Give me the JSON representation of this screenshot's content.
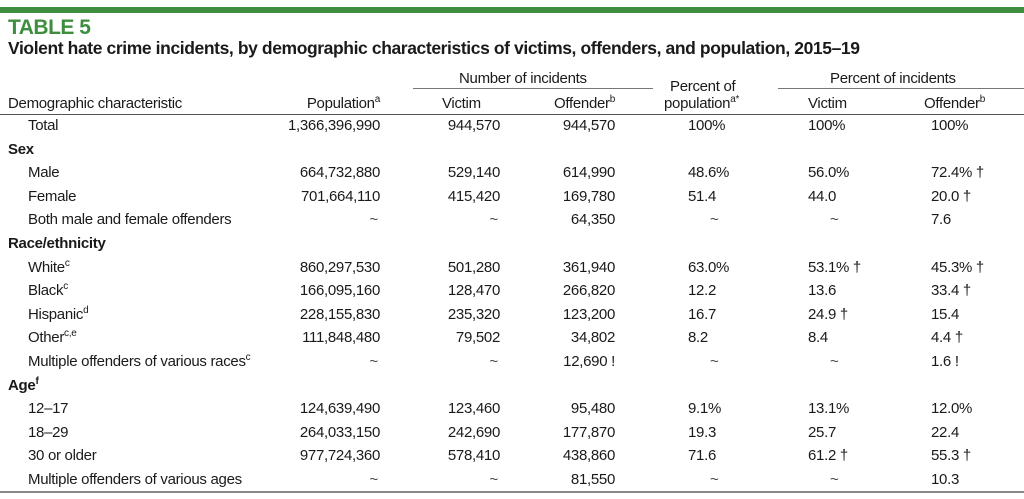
{
  "table_label": "TABLE 5",
  "title": "Violent hate crime incidents, by demographic characteristics of victims, offenders, and population, 2015–19",
  "accent_color": "#3f8e3f",
  "headers": {
    "characteristic": "Demographic characteristic",
    "population": "Population",
    "population_sup": "a",
    "number_group": "Number of incidents",
    "victim": "Victim",
    "offender": "Offender",
    "offender_sup": "b",
    "percent_pop_line1": "Percent of",
    "percent_pop_line2": "population",
    "percent_pop_sup": "a*",
    "percent_group": "Percent of incidents",
    "pct_victim": "Victim",
    "pct_offender": "Offender",
    "pct_offender_sup": "b"
  },
  "rows": [
    {
      "type": "total",
      "label": "Total",
      "sup": "",
      "population": "1,366,396,990",
      "victim": "944,570",
      "offender": "944,570",
      "pct_population": "100%",
      "pct_victim": "100%",
      "pct_offender": "100%"
    },
    {
      "type": "section",
      "label": "Sex",
      "sup": ""
    },
    {
      "type": "data",
      "label": "Male",
      "sup": "",
      "population": "664,732,880",
      "victim": "529,140",
      "offender": "614,990",
      "pct_population": "48.6%",
      "pct_victim": "56.0%",
      "pct_offender": "72.4% †"
    },
    {
      "type": "data",
      "label": "Female",
      "sup": "",
      "population": "701,664,110",
      "victim": "415,420",
      "offender": "169,780",
      "pct_population": "51.4",
      "pct_victim": "44.0",
      "pct_offender": "20.0 †"
    },
    {
      "type": "data",
      "label": "Both male and female offenders",
      "sup": "",
      "population": "~",
      "victim": "~",
      "offender": "64,350",
      "pct_population": "~",
      "pct_victim": "~",
      "pct_offender": "7.6"
    },
    {
      "type": "section",
      "label": "Race/ethnicity",
      "sup": ""
    },
    {
      "type": "data",
      "label": "White",
      "sup": "c",
      "population": "860,297,530",
      "victim": "501,280",
      "offender": "361,940",
      "pct_population": "63.0%",
      "pct_victim": "53.1% †",
      "pct_offender": "45.3% †"
    },
    {
      "type": "data",
      "label": "Black",
      "sup": "c",
      "population": "166,095,160",
      "victim": "128,470",
      "offender": "266,820",
      "pct_population": "12.2",
      "pct_victim": "13.6",
      "pct_offender": "33.4 †"
    },
    {
      "type": "data",
      "label": "Hispanic",
      "sup": "d",
      "population": "228,155,830",
      "victim": "235,320",
      "offender": "123,200",
      "pct_population": "16.7",
      "pct_victim": "24.9 †",
      "pct_offender": "15.4"
    },
    {
      "type": "data",
      "label": "Other",
      "sup": "c,e",
      "population": "111,848,480",
      "victim": "79,502",
      "offender": "34,802",
      "pct_population": "8.2",
      "pct_victim": "8.4",
      "pct_offender": "4.4 †"
    },
    {
      "type": "data",
      "label": "Multiple offenders of various races",
      "sup": "c",
      "population": "~",
      "victim": "~",
      "offender": "12,690 !",
      "pct_population": "~",
      "pct_victim": "~",
      "pct_offender": "1.6 !"
    },
    {
      "type": "section",
      "label": "Age",
      "sup": "f"
    },
    {
      "type": "data",
      "label": "12–17",
      "sup": "",
      "population": "124,639,490",
      "victim": "123,460",
      "offender": "95,480",
      "pct_population": "9.1%",
      "pct_victim": "13.1%",
      "pct_offender": "12.0%"
    },
    {
      "type": "data",
      "label": "18–29",
      "sup": "",
      "population": "264,033,150",
      "victim": "242,690",
      "offender": "177,870",
      "pct_population": "19.3",
      "pct_victim": "25.7",
      "pct_offender": "22.4"
    },
    {
      "type": "data",
      "label": "30 or older",
      "sup": "",
      "population": "977,724,360",
      "victim": "578,410",
      "offender": "438,860",
      "pct_population": "71.6",
      "pct_victim": "61.2 †",
      "pct_offender": "55.3 †"
    },
    {
      "type": "data",
      "label": "Multiple offenders of various ages",
      "sup": "",
      "population": "~",
      "victim": "~",
      "offender": "81,550",
      "pct_population": "~",
      "pct_victim": "~",
      "pct_offender": "10.3"
    }
  ]
}
